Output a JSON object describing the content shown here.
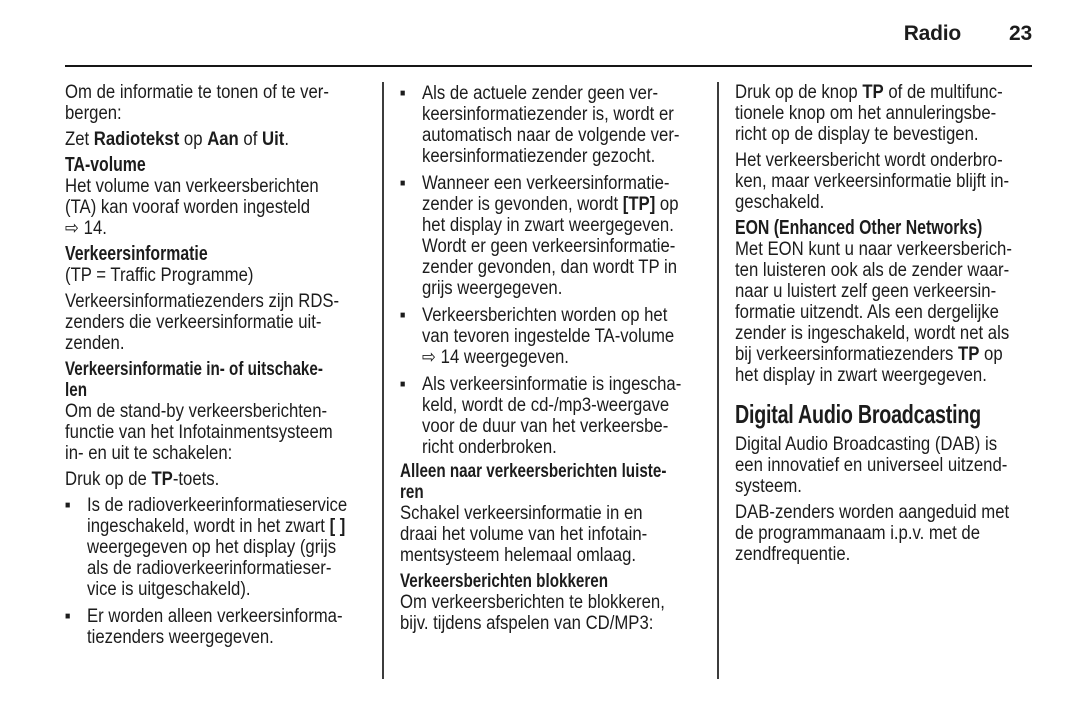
{
  "page": {
    "section": "Radio",
    "number": "23"
  },
  "colors": {
    "background": "#ffffff",
    "text": "#1c1c1c",
    "header_rule": "#161616",
    "column_divider": "#3c3c3c"
  },
  "symbols": {
    "bullet": "■",
    "reference_arrow": "⇨"
  },
  "columns": [
    {
      "blocks": [
        {
          "type": "p",
          "text": "Om de informatie te tonen of te ver-\nbergen:"
        },
        {
          "type": "p",
          "text": "Zet **Radiotekst** op **Aan** of **Uit**."
        },
        {
          "type": "h3",
          "text": "TA-volume"
        },
        {
          "type": "p",
          "text": "Het volume van verkeersberichten\n(TA) kan vooraf worden ingesteld\n⇨ 14."
        },
        {
          "type": "h3",
          "text": "Verkeersinformatie"
        },
        {
          "type": "p",
          "text": "(TP = Traffic Programme)"
        },
        {
          "type": "p",
          "text": "Verkeersinformatiezenders zijn RDS-\nzenders die verkeersinformatie uit-\nzenden."
        },
        {
          "type": "h4",
          "text": "Verkeersinformatie in- of uitschake-\nlen"
        },
        {
          "type": "p",
          "text": "Om de stand-by verkeersberichten-\nfunctie van het Infotainmentsysteem\nin- en uit te schakelen:"
        },
        {
          "type": "p",
          "text": "Druk op de **TP**-toets."
        },
        {
          "type": "bullets",
          "items": [
            "Is de radioverkeerinformatieservice\ningeschakeld, wordt in het zwart **[ ]**\nweergegeven op het display (grijs\nals de radioverkeerinformatieser-\nvice is uitgeschakeld).",
            "Er worden alleen verkeersinforma-\ntiezenders weergegeven."
          ]
        }
      ]
    },
    {
      "blocks": [
        {
          "type": "bullets",
          "items": [
            "Als de actuele zender geen ver-\nkeersinformatiezender is, wordt er\nautomatisch naar de volgende ver-\nkeersinformatiezender gezocht.",
            "Wanneer een verkeersinformatie-\nzender is gevonden, wordt **[TP]** op\nhet display in zwart weergegeven.\nWordt er geen verkeersinformatie-\nzender gevonden, dan wordt TP in\ngrijs weergegeven.",
            "Verkeersberichten worden op het\nvan tevoren ingestelde TA-volume\n⇨ 14 weergegeven.",
            "Als verkeersinformatie is ingescha-\nkeld, wordt de cd-/mp3-weergave\nvoor de duur van het verkeersbe-\nricht onderbroken."
          ]
        },
        {
          "type": "h4",
          "text": "Alleen naar verkeersberichten luiste-\nren"
        },
        {
          "type": "p",
          "text": "Schakel verkeersinformatie in en\ndraai het volume van het infotain-\nmentsysteem helemaal omlaag."
        },
        {
          "type": "h4",
          "text": "Verkeersberichten blokkeren"
        },
        {
          "type": "p",
          "text": "Om verkeersberichten te blokkeren,\nbijv. tijdens afspelen van CD/MP3:"
        }
      ]
    },
    {
      "blocks": [
        {
          "type": "p",
          "text": "Druk op de knop **TP** of de multifunc-\ntionele knop om het annuleringsbe-\nricht op de display te bevestigen."
        },
        {
          "type": "p",
          "text": "Het verkeersbericht wordt onderbro-\nken, maar verkeersinformatie blijft in-\ngeschakeld."
        },
        {
          "type": "h3",
          "text": "EON (Enhanced Other Networks)"
        },
        {
          "type": "p",
          "text": "Met EON kunt u naar verkeersberich-\nten luisteren ook als de zender waar-\nnaar u luistert zelf geen verkeersin-\nformatie uitzendt. Als een dergelijke\nzender is ingeschakeld, wordt net als\nbij verkeersinformatiezenders **TP** op\nhet display in zwart weergegeven."
        },
        {
          "type": "h1",
          "text": "Digital Audio Broadcasting"
        },
        {
          "type": "p",
          "text": "Digital Audio Broadcasting (DAB) is\neen innovatief en universeel uitzend-\nsysteem."
        },
        {
          "type": "p",
          "text": "DAB-zenders worden aangeduid met\nde programmanaam i.p.v. met de\nzendfrequentie."
        }
      ]
    }
  ]
}
